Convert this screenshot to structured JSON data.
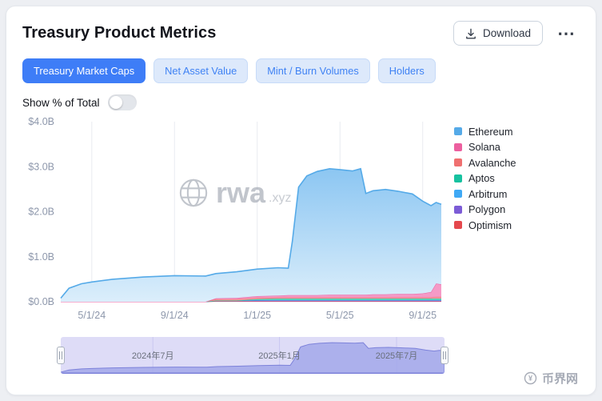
{
  "header": {
    "title": "Treasury Product Metrics",
    "download_label": "Download",
    "more_icon": "⋯"
  },
  "tabs": [
    {
      "label": "Treasury Market Caps",
      "active": true
    },
    {
      "label": "Net Asset Value",
      "active": false
    },
    {
      "label": "Mint / Burn Volumes",
      "active": false
    },
    {
      "label": "Holders",
      "active": false
    }
  ],
  "toggle": {
    "label": "Show % of Total",
    "on": false
  },
  "watermark": {
    "brand": "rwa",
    "suffix": ".xyz"
  },
  "footer": {
    "brand": "币界网"
  },
  "navigator": {
    "bg": "#dedcf7",
    "fill": "#a3a8ea",
    "line": "#7d82da",
    "ymax": 3.2,
    "labels": [
      {
        "text": "2024年7月",
        "pct": 24
      },
      {
        "text": "2025年1月",
        "pct": 57
      },
      {
        "text": "2025年7月",
        "pct": 87.5
      }
    ]
  },
  "chart_data": {
    "type": "area",
    "stacked": true,
    "title": "Treasury Market Caps",
    "unit": "USD billions",
    "x_desc": "months since 2024-03-15",
    "ylim": [
      0,
      4
    ],
    "x": [
      0,
      0.4,
      1.0,
      1.5,
      2.5,
      4,
      5.5,
      7,
      7.5,
      8.5,
      9.5,
      10.5,
      11.0,
      11.2,
      11.5,
      11.9,
      12.4,
      13.0,
      13.5,
      14.1,
      14.5,
      14.75,
      15.1,
      15.7,
      16.3,
      17.0,
      17.5,
      17.9,
      18.15,
      18.4
    ],
    "xticks": [
      {
        "t": 1.5,
        "label": "5/1/24"
      },
      {
        "t": 5.5,
        "label": "9/1/24"
      },
      {
        "t": 9.5,
        "label": "1/1/25"
      },
      {
        "t": 13.5,
        "label": "5/1/25"
      },
      {
        "t": 17.5,
        "label": "9/1/25"
      }
    ],
    "yticks": [
      {
        "v": 0,
        "label": "$0.0B"
      },
      {
        "v": 1,
        "label": "$1.0B"
      },
      {
        "v": 2,
        "label": "$2.0B"
      },
      {
        "v": 3,
        "label": "$3.0B"
      },
      {
        "v": 4,
        "label": "$4.0B"
      }
    ],
    "series": [
      {
        "name": "Optimism",
        "color": "#e5484d",
        "fill": "#ef6b70",
        "values": [
          0,
          0,
          0,
          0,
          0,
          0,
          0,
          0,
          0.01,
          0.01,
          0.01,
          0.01,
          0.01,
          0.01,
          0.01,
          0.01,
          0.01,
          0.01,
          0.01,
          0.01,
          0.01,
          0.01,
          0.01,
          0.01,
          0.01,
          0.01,
          0.01,
          0.01,
          0.01,
          0.01
        ]
      },
      {
        "name": "Polygon",
        "color": "#7c5cd6",
        "fill": "#9a7fe3",
        "values": [
          0,
          0,
          0,
          0,
          0,
          0,
          0,
          0,
          0.015,
          0.015,
          0.015,
          0.015,
          0.015,
          0.015,
          0.015,
          0.015,
          0.015,
          0.015,
          0.015,
          0.015,
          0.015,
          0.015,
          0.015,
          0.015,
          0.015,
          0.015,
          0.015,
          0.015,
          0.015,
          0.015
        ]
      },
      {
        "name": "Arbitrum",
        "color": "#3fa9f5",
        "fill": "#7cc4f7",
        "values": [
          0,
          0,
          0,
          0,
          0,
          0,
          0,
          0,
          0,
          0,
          0.01,
          0.01,
          0.01,
          0.01,
          0.01,
          0.01,
          0.01,
          0.01,
          0.01,
          0.01,
          0.01,
          0.01,
          0.01,
          0.01,
          0.01,
          0.01,
          0.01,
          0.01,
          0.01,
          0.01
        ]
      },
      {
        "name": "Aptos",
        "color": "#17c2a0",
        "fill": "#4fd6bb",
        "values": [
          0,
          0,
          0,
          0,
          0,
          0,
          0,
          0,
          0,
          0,
          0.02,
          0.03,
          0.03,
          0.03,
          0.03,
          0.03,
          0.03,
          0.03,
          0.03,
          0.03,
          0.03,
          0.03,
          0.03,
          0.03,
          0.03,
          0.03,
          0.03,
          0.03,
          0.03,
          0.03
        ]
      },
      {
        "name": "Avalanche",
        "color": "#ef7070",
        "fill": "#f49a9a",
        "values": [
          0,
          0,
          0,
          0,
          0,
          0,
          0,
          0,
          0.03,
          0.03,
          0.03,
          0.03,
          0.03,
          0.03,
          0.03,
          0.03,
          0.03,
          0.03,
          0.03,
          0.03,
          0.03,
          0.03,
          0.03,
          0.03,
          0.03,
          0.03,
          0.03,
          0.03,
          0.04,
          0.04
        ]
      },
      {
        "name": "Solana",
        "color": "#ec5f9f",
        "fill": "#f48fc0",
        "values": [
          0,
          0,
          0,
          0,
          0,
          0,
          0,
          0,
          0.02,
          0.03,
          0.04,
          0.04,
          0.05,
          0.05,
          0.05,
          0.05,
          0.05,
          0.06,
          0.06,
          0.06,
          0.06,
          0.06,
          0.07,
          0.07,
          0.08,
          0.08,
          0.09,
          0.12,
          0.3,
          0.28
        ]
      },
      {
        "name": "Ethereum",
        "color": "#55aae8",
        "fill_top": "#8cc6f2",
        "fill_bottom": "#dbeefb",
        "values": [
          0.08,
          0.3,
          0.4,
          0.44,
          0.5,
          0.55,
          0.58,
          0.57,
          0.55,
          0.58,
          0.6,
          0.62,
          0.6,
          1.2,
          2.4,
          2.65,
          2.75,
          2.8,
          2.78,
          2.75,
          2.8,
          2.25,
          2.3,
          2.33,
          2.28,
          2.22,
          2.05,
          1.92,
          1.8,
          1.78
        ]
      }
    ],
    "legend_order_top_down": [
      "Ethereum",
      "Solana",
      "Avalanche",
      "Aptos",
      "Arbitrum",
      "Polygon",
      "Optimism"
    ]
  }
}
